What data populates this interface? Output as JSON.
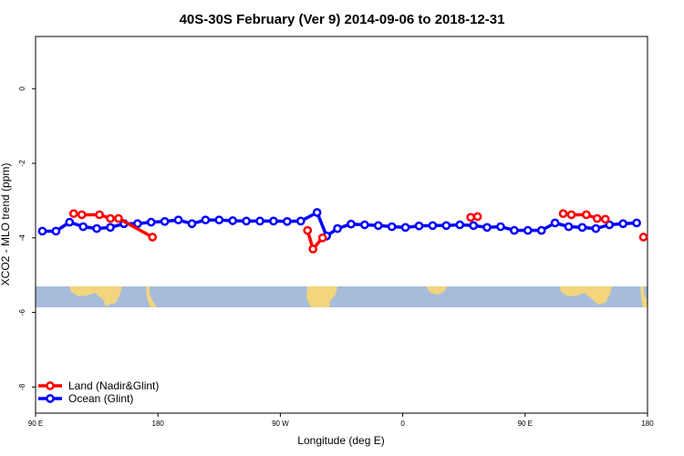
{
  "chart_data": {
    "type": "line",
    "title": "40S-30S February (Ver 9)   2014-09-06 to 2018-12-31",
    "xlabel": "Longitude (deg E)",
    "ylabel": "XCO2 - MLO trend (ppm)",
    "x_ticks": [
      {
        "value": 90,
        "label": "90 E"
      },
      {
        "value": 180,
        "label": "180"
      },
      {
        "value": 270,
        "label": "90 W"
      },
      {
        "value": 360,
        "label": "0"
      },
      {
        "value": 450,
        "label": "90 E"
      },
      {
        "value": 540,
        "label": "180"
      }
    ],
    "y_ticks": [
      0,
      -2,
      -4,
      -6,
      -8
    ],
    "xlim": [
      90,
      540
    ],
    "ylim": [
      -8.7,
      1.4
    ],
    "grid": false,
    "legend_position": "bottom-left",
    "series": [
      {
        "name": "Land (Nadir&Glint)",
        "color": "#ff0000",
        "segments": [
          [
            [
              118,
              -3.35
            ],
            [
              124,
              -3.38
            ],
            [
              137,
              -3.38
            ],
            [
              145,
              -3.48
            ],
            [
              151,
              -3.48
            ],
            [
              176,
              -3.98
            ]
          ],
          [
            [
              290,
              -3.8
            ],
            [
              294,
              -4.3
            ],
            [
              301,
              -4.0
            ]
          ],
          [
            [
              410,
              -3.45
            ],
            [
              415,
              -3.43
            ]
          ],
          [
            [
              478,
              -3.35
            ],
            [
              484,
              -3.38
            ],
            [
              495,
              -3.38
            ],
            [
              503,
              -3.48
            ],
            [
              509,
              -3.5
            ]
          ],
          [
            [
              537,
              -3.98
            ]
          ]
        ]
      },
      {
        "name": "Ocean (Glint)",
        "color": "#0000ff",
        "segments": [
          [
            [
              95,
              -3.82
            ],
            [
              105,
              -3.82
            ],
            [
              115,
              -3.58
            ],
            [
              125,
              -3.7
            ],
            [
              135,
              -3.75
            ],
            [
              145,
              -3.72
            ],
            [
              155,
              -3.62
            ],
            [
              165,
              -3.62
            ],
            [
              175,
              -3.58
            ],
            [
              185,
              -3.56
            ],
            [
              195,
              -3.52
            ],
            [
              205,
              -3.62
            ],
            [
              215,
              -3.52
            ],
            [
              225,
              -3.52
            ],
            [
              235,
              -3.54
            ],
            [
              245,
              -3.55
            ],
            [
              255,
              -3.55
            ],
            [
              265,
              -3.55
            ],
            [
              275,
              -3.56
            ],
            [
              285,
              -3.55
            ],
            [
              297,
              -3.32
            ],
            [
              304,
              -3.95
            ],
            [
              312,
              -3.75
            ],
            [
              322,
              -3.63
            ],
            [
              332,
              -3.65
            ],
            [
              342,
              -3.67
            ],
            [
              352,
              -3.7
            ],
            [
              362,
              -3.72
            ],
            [
              372,
              -3.68
            ],
            [
              382,
              -3.67
            ],
            [
              392,
              -3.67
            ],
            [
              402,
              -3.65
            ],
            [
              412,
              -3.67
            ],
            [
              422,
              -3.72
            ],
            [
              432,
              -3.7
            ],
            [
              442,
              -3.8
            ],
            [
              452,
              -3.8
            ],
            [
              462,
              -3.8
            ],
            [
              472,
              -3.6
            ],
            [
              482,
              -3.7
            ],
            [
              492,
              -3.72
            ],
            [
              502,
              -3.75
            ],
            [
              512,
              -3.65
            ],
            [
              522,
              -3.62
            ],
            [
              532,
              -3.6
            ]
          ]
        ]
      }
    ]
  }
}
